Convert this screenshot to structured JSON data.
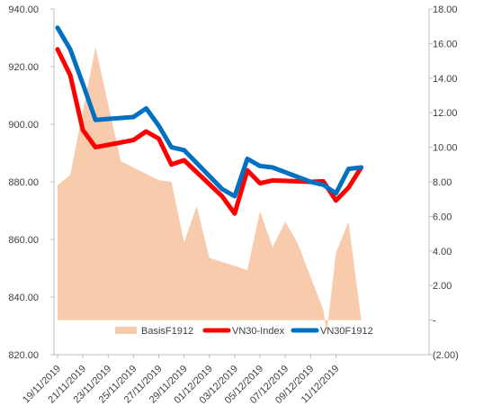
{
  "chart_data": {
    "type": "line",
    "title": "",
    "xlabel": "",
    "ylabel": "",
    "x": [
      "19/11/2019",
      "20/11/2019",
      "21/11/2019",
      "22/11/2019",
      "25/11/2019",
      "26/11/2019",
      "27/11/2019",
      "28/11/2019",
      "29/11/2019",
      "02/12/2019",
      "03/12/2019",
      "04/12/2019",
      "05/12/2019",
      "06/12/2019",
      "09/12/2019",
      "10/12/2019",
      "11/12/2019",
      "12/12/2019",
      "13/12/2019",
      "16/12/2019",
      "17/12/2019",
      "18/12/2019",
      "19/12/2019"
    ],
    "x_tick_labels": [
      "19/11/2019",
      "21/11/2019",
      "23/11/2019",
      "25/11/2019",
      "27/11/2019",
      "29/11/2019",
      "01/12/2019",
      "03/12/2019",
      "05/12/2019",
      "07/12/2019",
      "09/12/2019",
      "11/12/2019"
    ],
    "y_left": {
      "min": 820,
      "max": 940,
      "step": 20,
      "tick_labels": [
        "820.00",
        "840.00",
        "860.00",
        "880.00",
        "900.00",
        "920.00",
        "940.00"
      ]
    },
    "y_right": {
      "min": -2,
      "max": 18,
      "step": 2,
      "tick_labels": [
        "(2.00)",
        "-",
        "2.00",
        "4.00",
        "6.00",
        "8.00",
        "10.00",
        "12.00",
        "14.00",
        "16.00",
        "18.00"
      ]
    },
    "series": [
      {
        "name": "BasisF1912",
        "kind": "area",
        "axis": "right",
        "color": "#f8cbad",
        "points": [
          [
            "19/11/2019",
            7.8
          ],
          [
            "20/11/2019",
            8.4
          ],
          [
            "22/11/2019",
            15.8
          ],
          [
            "24/11/2019",
            9.2
          ],
          [
            "27/11/2019",
            8.1
          ],
          [
            "28/11/2019",
            8.0
          ],
          [
            "29/11/2019",
            4.5
          ],
          [
            "30/11/2019",
            6.6
          ],
          [
            "01/12/2019",
            3.6
          ],
          [
            "04/12/2019",
            2.9
          ],
          [
            "05/12/2019",
            6.3
          ],
          [
            "06/12/2019",
            4.2
          ],
          [
            "07/12/2019",
            5.7
          ],
          [
            "08/12/2019",
            4.4
          ],
          [
            "10/12/2019",
            0.6
          ],
          [
            "10/12/2019",
            -0.7
          ],
          [
            "11/12/2019",
            3.9
          ],
          [
            "12/12/2019",
            5.7
          ],
          [
            "13/12/2019",
            0.0
          ]
        ]
      },
      {
        "name": "VN30-Index",
        "kind": "line",
        "axis": "left",
        "color": "#ff0000",
        "points": [
          [
            "19/11/2019",
            926
          ],
          [
            "20/11/2019",
            917
          ],
          [
            "21/11/2019",
            898
          ],
          [
            "22/11/2019",
            892
          ],
          [
            "25/11/2019",
            894.5
          ],
          [
            "26/11/2019",
            897.5
          ],
          [
            "27/11/2019",
            895
          ],
          [
            "28/11/2019",
            886
          ],
          [
            "29/11/2019",
            887.5
          ],
          [
            "02/12/2019",
            875
          ],
          [
            "03/12/2019",
            869
          ],
          [
            "04/12/2019",
            884
          ],
          [
            "05/12/2019",
            879.5
          ],
          [
            "06/12/2019",
            880.5
          ],
          [
            "09/12/2019",
            880
          ],
          [
            "10/12/2019",
            880.2
          ],
          [
            "11/12/2019",
            873.5
          ],
          [
            "12/12/2019",
            878
          ],
          [
            "13/12/2019",
            885
          ]
        ]
      },
      {
        "name": "VN30F1912",
        "kind": "line",
        "axis": "left",
        "color": "#0070c0",
        "points": [
          [
            "19/11/2019",
            933.5
          ],
          [
            "20/11/2019",
            926
          ],
          [
            "21/11/2019",
            914
          ],
          [
            "22/11/2019",
            901.5
          ],
          [
            "25/11/2019",
            902.5
          ],
          [
            "26/11/2019",
            905.5
          ],
          [
            "27/11/2019",
            899.5
          ],
          [
            "28/11/2019",
            892
          ],
          [
            "29/11/2019",
            891
          ],
          [
            "02/12/2019",
            877.5
          ],
          [
            "03/12/2019",
            875
          ],
          [
            "04/12/2019",
            888
          ],
          [
            "05/12/2019",
            885.5
          ],
          [
            "06/12/2019",
            885
          ],
          [
            "09/12/2019",
            880
          ],
          [
            "10/12/2019",
            879
          ],
          [
            "11/12/2019",
            876
          ],
          [
            "12/12/2019",
            884.5
          ],
          [
            "13/12/2019",
            885
          ]
        ]
      }
    ],
    "legend": {
      "placement": "bottom-inside",
      "items": [
        "BasisF1912",
        "VN30-Index",
        "VN30F1912"
      ]
    },
    "grid": false
  }
}
